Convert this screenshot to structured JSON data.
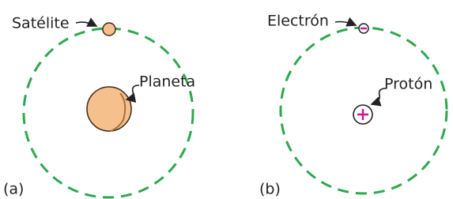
{
  "figures": [
    {
      "label": "(a)",
      "orbiter": "Satélite",
      "center": "Planeta"
    },
    {
      "label": "(b)",
      "orbiter": "Electrón",
      "center": "Protón"
    }
  ]
}
